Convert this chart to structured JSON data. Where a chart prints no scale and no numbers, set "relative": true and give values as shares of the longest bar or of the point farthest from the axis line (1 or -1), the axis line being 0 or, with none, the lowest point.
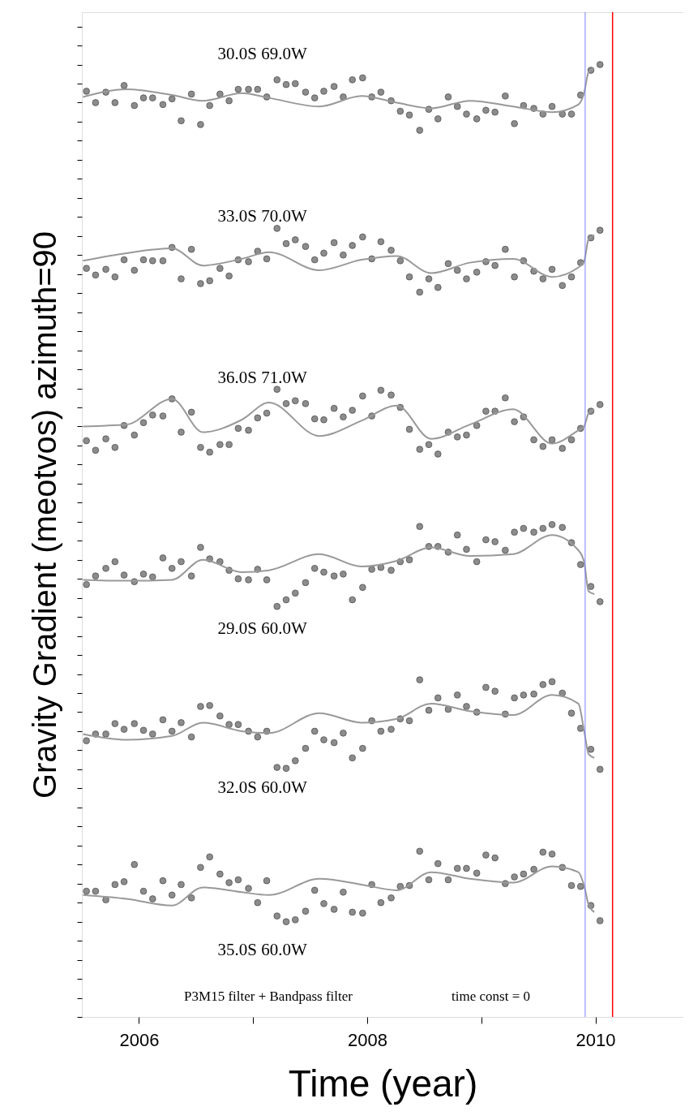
{
  "chart_data": {
    "type": "scatter",
    "relative": true,
    "xlabel": "Time (year)",
    "ylabel": "Gravity Gradient (meotvos)  azimuth=90",
    "xlim": [
      2005.5,
      2010.77
    ],
    "xticks": [
      2006,
      {
        "value": 2007,
        "label": null
      },
      2008,
      {
        "value": 2009,
        "label": null
      },
      2010
    ],
    "tick_labels": "x",
    "grid": false,
    "x": [
      2005.54,
      2005.62,
      2005.71,
      2005.79,
      2005.87,
      2005.96,
      2006.04,
      2006.12,
      2006.21,
      2006.29,
      2006.37,
      2006.46,
      2006.54,
      2006.62,
      2006.71,
      2006.79,
      2006.87,
      2006.96,
      2007.04,
      2007.12,
      2007.21,
      2007.29,
      2007.37,
      2007.46,
      2007.54,
      2007.62,
      2007.71,
      2007.79,
      2007.87,
      2007.96,
      2008.04,
      2008.12,
      2008.21,
      2008.29,
      2008.37,
      2008.46,
      2008.54,
      2008.62,
      2008.71,
      2008.79,
      2008.87,
      2008.96,
      2009.04,
      2009.12,
      2009.21,
      2009.29,
      2009.37,
      2009.46,
      2009.54,
      2009.62,
      2009.71,
      2009.79,
      2009.87,
      2009.96,
      2010.04
    ],
    "series": [
      {
        "name": "30.0S  69.0W",
        "marker": "circle",
        "color": "#8c8c8c",
        "values": [
          0.972,
          0.96,
          0.971,
          0.96,
          0.978,
          0.957,
          0.965,
          0.965,
          0.958,
          0.964,
          0.941,
          0.969,
          0.937,
          0.957,
          0.969,
          0.962,
          0.974,
          0.974,
          0.974,
          0.966,
          0.984,
          0.979,
          0.98,
          0.971,
          0.965,
          0.972,
          0.977,
          0.966,
          0.984,
          0.986,
          0.966,
          0.971,
          0.962,
          0.951,
          0.947,
          0.931,
          0.953,
          0.943,
          0.966,
          0.956,
          0.948,
          0.943,
          0.952,
          0.95,
          0.967,
          0.938,
          0.957,
          0.954,
          0.948,
          0.956,
          0.948,
          0.948,
          0.968,
          0.994,
          1.0
        ]
      },
      {
        "type": "line",
        "color": "#999999",
        "x": [
          2005.51,
          2005.89,
          2006.29,
          2006.56,
          2006.9,
          2007.14,
          2007.58,
          2007.95,
          2008.26,
          2008.56,
          2008.9,
          2009.28,
          2009.62,
          2009.85,
          2009.9,
          2009.94,
          2009.99
        ],
        "values": [
          0.966,
          0.974,
          0.968,
          0.962,
          0.97,
          0.965,
          0.956,
          0.967,
          0.96,
          0.954,
          0.962,
          0.956,
          0.95,
          0.958,
          0.97,
          0.992,
          0.996
        ]
      },
      {
        "name": "33.0S  70.0W",
        "marker": "circle",
        "color": "#8c8c8c",
        "values": [
          0.786,
          0.779,
          0.785,
          0.777,
          0.795,
          0.784,
          0.795,
          0.794,
          0.794,
          0.808,
          0.775,
          0.806,
          0.77,
          0.773,
          0.786,
          0.778,
          0.795,
          0.793,
          0.804,
          0.796,
          0.828,
          0.812,
          0.816,
          0.809,
          0.795,
          0.802,
          0.813,
          0.8,
          0.81,
          0.819,
          0.796,
          0.814,
          0.805,
          0.794,
          0.777,
          0.761,
          0.775,
          0.766,
          0.791,
          0.784,
          0.775,
          0.782,
          0.793,
          0.789,
          0.806,
          0.777,
          0.794,
          0.783,
          0.775,
          0.785,
          0.768,
          0.777,
          0.792,
          0.818,
          0.826
        ]
      },
      {
        "type": "line",
        "color": "#999999",
        "x": [
          2005.51,
          2005.89,
          2006.29,
          2006.56,
          2006.9,
          2007.14,
          2007.58,
          2007.95,
          2008.26,
          2008.56,
          2008.9,
          2009.28,
          2009.62,
          2009.85,
          2009.9,
          2009.94,
          2009.99
        ],
        "values": [
          0.794,
          0.802,
          0.807,
          0.789,
          0.796,
          0.803,
          0.784,
          0.795,
          0.799,
          0.781,
          0.792,
          0.796,
          0.777,
          0.787,
          0.793,
          0.817,
          0.821
        ]
      },
      {
        "name": "36.0S  71.0W",
        "marker": "circle",
        "color": "#8c8c8c",
        "values": [
          0.605,
          0.595,
          0.607,
          0.598,
          0.621,
          0.611,
          0.624,
          0.632,
          0.631,
          0.649,
          0.614,
          0.635,
          0.598,
          0.593,
          0.601,
          0.601,
          0.618,
          0.616,
          0.629,
          0.634,
          0.659,
          0.644,
          0.647,
          0.644,
          0.628,
          0.627,
          0.639,
          0.63,
          0.637,
          0.652,
          0.631,
          0.658,
          0.653,
          0.64,
          0.617,
          0.596,
          0.601,
          0.591,
          0.614,
          0.609,
          0.611,
          0.621,
          0.636,
          0.636,
          0.65,
          0.625,
          0.63,
          0.606,
          0.599,
          0.606,
          0.597,
          0.606,
          0.618,
          0.636,
          0.643
        ]
      },
      {
        "type": "line",
        "color": "#999999",
        "x": [
          2005.51,
          2005.89,
          2006.29,
          2006.56,
          2006.9,
          2007.14,
          2007.58,
          2007.95,
          2008.26,
          2008.56,
          2008.9,
          2009.28,
          2009.62,
          2009.85,
          2009.9,
          2009.94,
          2009.99
        ],
        "values": [
          0.62,
          0.622,
          0.649,
          0.614,
          0.627,
          0.645,
          0.61,
          0.626,
          0.642,
          0.607,
          0.622,
          0.638,
          0.602,
          0.616,
          0.62,
          0.634,
          0.638
        ]
      },
      {
        "name": "29.0S  60.0W",
        "marker": "circle",
        "color": "#8c8c8c",
        "values": [
          0.454,
          0.463,
          0.471,
          0.478,
          0.464,
          0.457,
          0.465,
          0.462,
          0.482,
          0.471,
          0.478,
          0.463,
          0.493,
          0.481,
          0.478,
          0.469,
          0.46,
          0.459,
          0.47,
          0.459,
          0.431,
          0.438,
          0.445,
          0.456,
          0.471,
          0.467,
          0.463,
          0.465,
          0.438,
          0.451,
          0.47,
          0.472,
          0.469,
          0.478,
          0.48,
          0.515,
          0.494,
          0.494,
          0.488,
          0.506,
          0.491,
          0.478,
          0.501,
          0.499,
          0.49,
          0.509,
          0.513,
          0.509,
          0.513,
          0.517,
          0.514,
          0.498,
          0.475,
          0.452,
          0.436
        ]
      },
      {
        "type": "line",
        "color": "#999999",
        "x": [
          2005.51,
          2005.89,
          2006.29,
          2006.56,
          2006.9,
          2007.14,
          2007.58,
          2007.95,
          2008.26,
          2008.56,
          2008.9,
          2009.28,
          2009.62,
          2009.85,
          2009.9,
          2009.94,
          2009.99
        ],
        "values": [
          0.459,
          0.458,
          0.459,
          0.48,
          0.467,
          0.469,
          0.486,
          0.473,
          0.479,
          0.493,
          0.484,
          0.486,
          0.506,
          0.49,
          0.478,
          0.447,
          0.444
        ]
      },
      {
        "name": "32.0S  60.0W",
        "marker": "circle",
        "color": "#8c8c8c",
        "values": [
          0.29,
          0.297,
          0.297,
          0.308,
          0.302,
          0.308,
          0.301,
          0.297,
          0.312,
          0.3,
          0.309,
          0.294,
          0.326,
          0.327,
          0.316,
          0.307,
          0.307,
          0.3,
          0.294,
          0.3,
          0.262,
          0.261,
          0.269,
          0.282,
          0.3,
          0.291,
          0.288,
          0.298,
          0.272,
          0.282,
          0.311,
          0.3,
          0.302,
          0.313,
          0.311,
          0.354,
          0.322,
          0.335,
          0.323,
          0.338,
          0.326,
          0.32,
          0.346,
          0.342,
          0.318,
          0.335,
          0.338,
          0.339,
          0.349,
          0.352,
          0.34,
          0.319,
          0.303,
          0.281,
          0.26
        ]
      },
      {
        "type": "line",
        "color": "#999999",
        "x": [
          2005.51,
          2005.89,
          2006.29,
          2006.56,
          2006.9,
          2007.14,
          2007.58,
          2007.95,
          2008.26,
          2008.56,
          2008.9,
          2009.28,
          2009.62,
          2009.85,
          2009.9,
          2009.94,
          2009.99
        ],
        "values": [
          0.297,
          0.291,
          0.295,
          0.309,
          0.3,
          0.298,
          0.319,
          0.309,
          0.313,
          0.329,
          0.321,
          0.317,
          0.338,
          0.329,
          0.301,
          0.276,
          0.272
        ]
      },
      {
        "name": "35.0S  60.0W",
        "marker": "circle",
        "color": "#8c8c8c",
        "values": [
          0.132,
          0.132,
          0.123,
          0.139,
          0.142,
          0.16,
          0.132,
          0.124,
          0.143,
          0.128,
          0.139,
          0.125,
          0.157,
          0.168,
          0.15,
          0.141,
          0.144,
          0.135,
          0.12,
          0.143,
          0.106,
          0.1,
          0.102,
          0.111,
          0.133,
          0.119,
          0.113,
          0.131,
          0.11,
          0.109,
          0.139,
          0.12,
          0.125,
          0.137,
          0.138,
          0.174,
          0.144,
          0.161,
          0.144,
          0.156,
          0.156,
          0.151,
          0.17,
          0.167,
          0.14,
          0.147,
          0.15,
          0.155,
          0.173,
          0.171,
          0.157,
          0.138,
          0.137,
          0.117,
          0.101
        ]
      },
      {
        "type": "line",
        "color": "#999999",
        "x": [
          2005.51,
          2005.89,
          2006.29,
          2006.56,
          2006.9,
          2007.14,
          2007.58,
          2007.95,
          2008.26,
          2008.56,
          2008.9,
          2009.28,
          2009.62,
          2009.85,
          2009.9,
          2009.94,
          2009.99
        ],
        "values": [
          0.128,
          0.124,
          0.117,
          0.136,
          0.131,
          0.128,
          0.145,
          0.139,
          0.133,
          0.152,
          0.145,
          0.141,
          0.158,
          0.152,
          0.138,
          0.118,
          0.11
        ]
      }
    ],
    "ref_lines": [
      {
        "axis": "x",
        "value": 2009.91,
        "color": "#8080ff"
      },
      {
        "axis": "x",
        "value": 2010.15,
        "color": "#ff0000"
      }
    ],
    "annotations": [
      "P3M15 filter + Bandpass filter",
      "time const = 0"
    ]
  }
}
